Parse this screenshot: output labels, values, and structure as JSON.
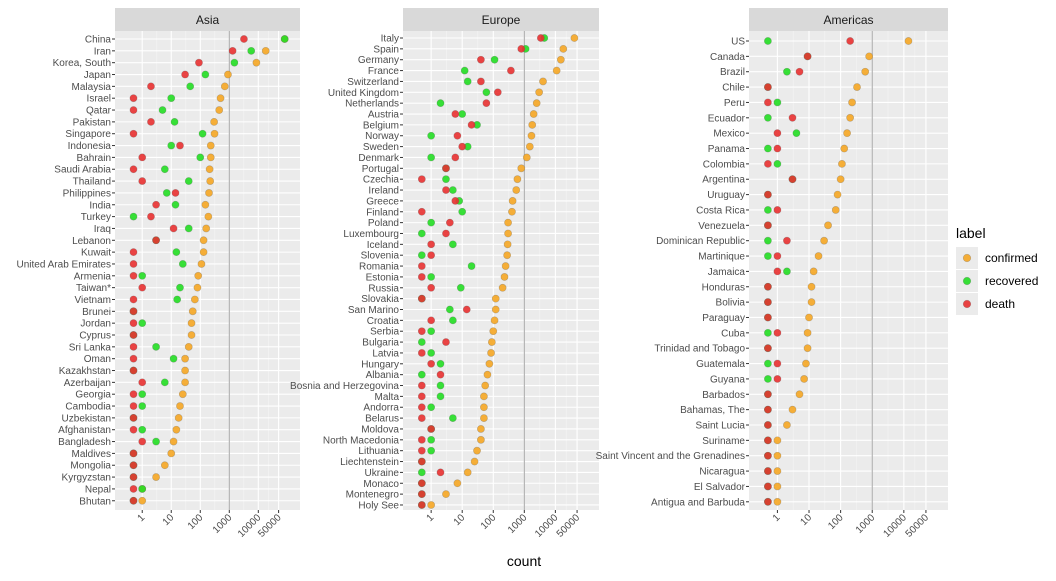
{
  "chart_data": {
    "type": "scatter",
    "x_scale": "log",
    "xlabel": "count",
    "x_ticks": [
      "1",
      "10",
      "100",
      "1000",
      "10000",
      "50000"
    ],
    "x_tick_values": [
      1,
      10,
      100,
      1000,
      10000,
      50000
    ],
    "reference_line_x": 1000,
    "legend": {
      "title": "label",
      "placement": "right",
      "entries": [
        {
          "key": "confirmed",
          "label": "confirmed",
          "color": "#F5A623"
        },
        {
          "key": "recovered",
          "label": "recovered",
          "color": "#22DD22"
        },
        {
          "key": "death",
          "label": "death",
          "color": "#E83030"
        }
      ]
    },
    "panels": [
      {
        "title": "Asia",
        "countries": [
          {
            "name": "China",
            "confirmed": 81000,
            "recovered": 81000,
            "death": 3200
          },
          {
            "name": "Iran",
            "confirmed": 18000,
            "recovered": 5700,
            "death": 1300
          },
          {
            "name": "Korea, South",
            "confirmed": 8600,
            "recovered": 1500,
            "death": 90
          },
          {
            "name": "Japan",
            "confirmed": 900,
            "recovered": 150,
            "death": 30
          },
          {
            "name": "Malaysia",
            "confirmed": 700,
            "recovered": 45,
            "death": 2
          },
          {
            "name": "Israel",
            "confirmed": 500,
            "recovered": 10,
            "death": 0.5
          },
          {
            "name": "Qatar",
            "confirmed": 450,
            "recovered": 5,
            "death": 0.5
          },
          {
            "name": "Pakistan",
            "confirmed": 300,
            "recovered": 13,
            "death": 2
          },
          {
            "name": "Singapore",
            "confirmed": 310,
            "recovered": 120,
            "death": 0.5
          },
          {
            "name": "Indonesia",
            "confirmed": 230,
            "recovered": 10,
            "death": 20
          },
          {
            "name": "Bahrain",
            "confirmed": 230,
            "recovered": 100,
            "death": 1
          },
          {
            "name": "Saudi Arabia",
            "confirmed": 210,
            "recovered": 6,
            "death": 0.5
          },
          {
            "name": "Thailand",
            "confirmed": 220,
            "recovered": 40,
            "death": 1
          },
          {
            "name": "Philippines",
            "confirmed": 200,
            "recovered": 7,
            "death": 14
          },
          {
            "name": "India",
            "confirmed": 150,
            "recovered": 14,
            "death": 3
          },
          {
            "name": "Turkey",
            "confirmed": 190,
            "recovered": 0.5,
            "death": 2
          },
          {
            "name": "Iraq",
            "confirmed": 160,
            "recovered": 40,
            "death": 12
          },
          {
            "name": "Lebanon",
            "confirmed": 130,
            "recovered": 3,
            "death": 3
          },
          {
            "name": "Kuwait",
            "confirmed": 130,
            "recovered": 15,
            "death": 0.5
          },
          {
            "name": "United Arab Emirates",
            "confirmed": 110,
            "recovered": 25,
            "death": 0.5
          },
          {
            "name": "Armenia",
            "confirmed": 85,
            "recovered": 1,
            "death": 0.5
          },
          {
            "name": "Taiwan*",
            "confirmed": 80,
            "recovered": 20,
            "death": 1
          },
          {
            "name": "Vietnam",
            "confirmed": 65,
            "recovered": 16,
            "death": 0.5
          },
          {
            "name": "Brunei",
            "confirmed": 55,
            "recovered": 0.5,
            "death": 0.5
          },
          {
            "name": "Jordan",
            "confirmed": 50,
            "recovered": 1,
            "death": 0.5
          },
          {
            "name": "Cyprus",
            "confirmed": 50,
            "recovered": 0.5,
            "death": 0.5
          },
          {
            "name": "Sri Lanka",
            "confirmed": 40,
            "recovered": 3,
            "death": 0.5
          },
          {
            "name": "Oman",
            "confirmed": 30,
            "recovered": 12,
            "death": 0.5
          },
          {
            "name": "Kazakhstan",
            "confirmed": 30,
            "recovered": 0.5,
            "death": 0.5
          },
          {
            "name": "Azerbaijan",
            "confirmed": 30,
            "recovered": 6,
            "death": 1
          },
          {
            "name": "Georgia",
            "confirmed": 25,
            "recovered": 1,
            "death": 0.5
          },
          {
            "name": "Cambodia",
            "confirmed": 20,
            "recovered": 1,
            "death": 0.5
          },
          {
            "name": "Uzbekistan",
            "confirmed": 18,
            "recovered": 0.5,
            "death": 0.5
          },
          {
            "name": "Afghanistan",
            "confirmed": 15,
            "recovered": 1,
            "death": 0.5
          },
          {
            "name": "Bangladesh",
            "confirmed": 12,
            "recovered": 3,
            "death": 1
          },
          {
            "name": "Maldives",
            "confirmed": 10,
            "recovered": 0.5,
            "death": 0.5
          },
          {
            "name": "Mongolia",
            "confirmed": 6,
            "recovered": 0.5,
            "death": 0.5
          },
          {
            "name": "Kyrgyzstan",
            "confirmed": 3,
            "recovered": 0.5,
            "death": 0.5
          },
          {
            "name": "Nepal",
            "confirmed": 1,
            "recovered": 1,
            "death": 0.5
          },
          {
            "name": "Bhutan",
            "confirmed": 1,
            "recovered": 0.5,
            "death": 0.5
          }
        ]
      },
      {
        "title": "Europe",
        "countries": [
          {
            "name": "Italy",
            "confirmed": 41000,
            "recovered": 4400,
            "death": 3400
          },
          {
            "name": "Spain",
            "confirmed": 18000,
            "recovered": 1100,
            "death": 800
          },
          {
            "name": "Germany",
            "confirmed": 15000,
            "recovered": 110,
            "death": 40
          },
          {
            "name": "France",
            "confirmed": 11000,
            "recovered": 12,
            "death": 370
          },
          {
            "name": "Switzerland",
            "confirmed": 4000,
            "recovered": 15,
            "death": 40
          },
          {
            "name": "United Kingdom",
            "confirmed": 3000,
            "recovered": 60,
            "death": 140
          },
          {
            "name": "Netherlands",
            "confirmed": 2500,
            "recovered": 2,
            "death": 60
          },
          {
            "name": "Austria",
            "confirmed": 2000,
            "recovered": 10,
            "death": 6
          },
          {
            "name": "Belgium",
            "confirmed": 1800,
            "recovered": 30,
            "death": 20
          },
          {
            "name": "Norway",
            "confirmed": 1700,
            "recovered": 1,
            "death": 7
          },
          {
            "name": "Sweden",
            "confirmed": 1500,
            "recovered": 15,
            "death": 10
          },
          {
            "name": "Denmark",
            "confirmed": 1200,
            "recovered": 1,
            "death": 6
          },
          {
            "name": "Portugal",
            "confirmed": 800,
            "recovered": 3,
            "death": 3
          },
          {
            "name": "Czechia",
            "confirmed": 600,
            "recovered": 3,
            "death": 0.5
          },
          {
            "name": "Ireland",
            "confirmed": 550,
            "recovered": 5,
            "death": 3
          },
          {
            "name": "Greece",
            "confirmed": 420,
            "recovered": 8,
            "death": 6
          },
          {
            "name": "Finland",
            "confirmed": 400,
            "recovered": 10,
            "death": 0.5
          },
          {
            "name": "Poland",
            "confirmed": 300,
            "recovered": 1,
            "death": 4
          },
          {
            "name": "Luxembourg",
            "confirmed": 300,
            "recovered": 0.5,
            "death": 3
          },
          {
            "name": "Iceland",
            "confirmed": 290,
            "recovered": 5,
            "death": 1
          },
          {
            "name": "Slovenia",
            "confirmed": 280,
            "recovered": 0.5,
            "death": 1
          },
          {
            "name": "Romania",
            "confirmed": 250,
            "recovered": 20,
            "death": 0.5
          },
          {
            "name": "Estonia",
            "confirmed": 230,
            "recovered": 1,
            "death": 0.5
          },
          {
            "name": "Russia",
            "confirmed": 200,
            "recovered": 9,
            "death": 1
          },
          {
            "name": "Slovakia",
            "confirmed": 120,
            "recovered": 0.5,
            "death": 0.5
          },
          {
            "name": "San Marino",
            "confirmed": 120,
            "recovered": 4,
            "death": 14
          },
          {
            "name": "Croatia",
            "confirmed": 110,
            "recovered": 5,
            "death": 1
          },
          {
            "name": "Serbia",
            "confirmed": 100,
            "recovered": 1,
            "death": 0.5
          },
          {
            "name": "Bulgaria",
            "confirmed": 90,
            "recovered": 0.5,
            "death": 3
          },
          {
            "name": "Latvia",
            "confirmed": 85,
            "recovered": 1,
            "death": 0.5
          },
          {
            "name": "Hungary",
            "confirmed": 75,
            "recovered": 2,
            "death": 1
          },
          {
            "name": "Albania",
            "confirmed": 65,
            "recovered": 0.5,
            "death": 2
          },
          {
            "name": "Bosnia and Herzegovina",
            "confirmed": 55,
            "recovered": 2,
            "death": 0.5
          },
          {
            "name": "Malta",
            "confirmed": 50,
            "recovered": 2,
            "death": 0.5
          },
          {
            "name": "Andorra",
            "confirmed": 50,
            "recovered": 1,
            "death": 0.5
          },
          {
            "name": "Belarus",
            "confirmed": 50,
            "recovered": 5,
            "death": 0.5
          },
          {
            "name": "Moldova",
            "confirmed": 40,
            "recovered": 1,
            "death": 1
          },
          {
            "name": "North Macedonia",
            "confirmed": 40,
            "recovered": 1,
            "death": 0.5
          },
          {
            "name": "Lithuania",
            "confirmed": 30,
            "recovered": 1,
            "death": 0.5
          },
          {
            "name": "Liechtenstein",
            "confirmed": 25,
            "recovered": 0.5,
            "death": 0.5
          },
          {
            "name": "Ukraine",
            "confirmed": 15,
            "recovered": 0.5,
            "death": 2
          },
          {
            "name": "Monaco",
            "confirmed": 7,
            "recovered": 0.5,
            "death": 0.5
          },
          {
            "name": "Montenegro",
            "confirmed": 3,
            "recovered": 0.5,
            "death": 0.5
          },
          {
            "name": "Holy See",
            "confirmed": 1,
            "recovered": 0.5,
            "death": 0.5
          }
        ]
      },
      {
        "title": "Americas",
        "countries": [
          {
            "name": "US",
            "confirmed": 14000,
            "recovered": 0.5,
            "death": 200
          },
          {
            "name": "Canada",
            "confirmed": 800,
            "recovered": 9,
            "death": 9
          },
          {
            "name": "Brazil",
            "confirmed": 600,
            "recovered": 2,
            "death": 5
          },
          {
            "name": "Chile",
            "confirmed": 330,
            "recovered": 0.5,
            "death": 0.5
          },
          {
            "name": "Peru",
            "confirmed": 230,
            "recovered": 1,
            "death": 0.5
          },
          {
            "name": "Ecuador",
            "confirmed": 200,
            "recovered": 0.5,
            "death": 3
          },
          {
            "name": "Mexico",
            "confirmed": 160,
            "recovered": 4,
            "death": 1
          },
          {
            "name": "Panama",
            "confirmed": 130,
            "recovered": 0.5,
            "death": 1
          },
          {
            "name": "Colombia",
            "confirmed": 110,
            "recovered": 1,
            "death": 0.5
          },
          {
            "name": "Argentina",
            "confirmed": 100,
            "recovered": 3,
            "death": 3
          },
          {
            "name": "Uruguay",
            "confirmed": 80,
            "recovered": 0.5,
            "death": 0.5
          },
          {
            "name": "Costa Rica",
            "confirmed": 70,
            "recovered": 0.5,
            "death": 1
          },
          {
            "name": "Venezuela",
            "confirmed": 40,
            "recovered": 0.5,
            "death": 0.5
          },
          {
            "name": "Dominican Republic",
            "confirmed": 30,
            "recovered": 0.5,
            "death": 2
          },
          {
            "name": "Martinique",
            "confirmed": 20,
            "recovered": 0.5,
            "death": 1
          },
          {
            "name": "Jamaica",
            "confirmed": 14,
            "recovered": 2,
            "death": 1
          },
          {
            "name": "Honduras",
            "confirmed": 12,
            "recovered": 0.5,
            "death": 0.5
          },
          {
            "name": "Bolivia",
            "confirmed": 12,
            "recovered": 0.5,
            "death": 0.5
          },
          {
            "name": "Paraguay",
            "confirmed": 10,
            "recovered": 0.5,
            "death": 0.5
          },
          {
            "name": "Cuba",
            "confirmed": 9,
            "recovered": 0.5,
            "death": 1
          },
          {
            "name": "Trinidad and Tobago",
            "confirmed": 9,
            "recovered": 0.5,
            "death": 0.5
          },
          {
            "name": "Guatemala",
            "confirmed": 8,
            "recovered": 0.5,
            "death": 1
          },
          {
            "name": "Guyana",
            "confirmed": 7,
            "recovered": 0.5,
            "death": 1
          },
          {
            "name": "Barbados",
            "confirmed": 5,
            "recovered": 0.5,
            "death": 0.5
          },
          {
            "name": "Bahamas, The",
            "confirmed": 3,
            "recovered": 0.5,
            "death": 0.5
          },
          {
            "name": "Saint Lucia",
            "confirmed": 2,
            "recovered": 0.5,
            "death": 0.5
          },
          {
            "name": "Suriname",
            "confirmed": 1,
            "recovered": 0.5,
            "death": 0.5
          },
          {
            "name": "Saint Vincent and the Grenadines",
            "confirmed": 1,
            "recovered": 0.5,
            "death": 0.5
          },
          {
            "name": "Nicaragua",
            "confirmed": 1,
            "recovered": 0.5,
            "death": 0.5
          },
          {
            "name": "El Salvador",
            "confirmed": 1,
            "recovered": 0.5,
            "death": 0.5
          },
          {
            "name": "Antigua and Barbuda",
            "confirmed": 1,
            "recovered": 0.5,
            "death": 0.5
          }
        ]
      }
    ]
  }
}
